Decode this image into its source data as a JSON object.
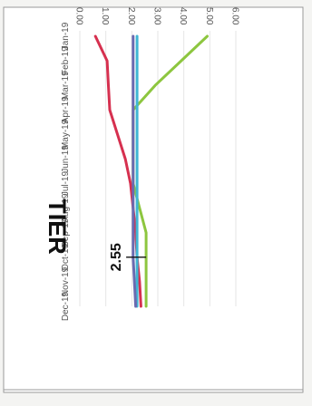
{
  "chart_data": {
    "type": "line",
    "title": "TIER",
    "categories": [
      "Jan-19",
      "Feb-19",
      "Mar-19",
      "Apr-19",
      "May-19",
      "Jun-19",
      "Jul-19",
      "Aug-19",
      "Sep-19",
      "Oct-19",
      "Nov-19",
      "Dec-19"
    ],
    "ylim": [
      0,
      6
    ],
    "yticks": [
      "0.00",
      "1.00",
      "2.00",
      "3.00",
      "4.00",
      "5.00",
      "6.00"
    ],
    "grid": true,
    "series": [
      {
        "color": "#8dc63f",
        "values": [
          4.9,
          3.9,
          2.9,
          2.05,
          2.05,
          2.05,
          2.05,
          2.3,
          2.55,
          2.55,
          2.55,
          2.55
        ]
      },
      {
        "color": "#d6304f",
        "values": [
          0.6,
          1.05,
          1.1,
          1.15,
          1.45,
          1.75,
          1.95,
          2.05,
          2.15,
          2.2,
          2.3,
          2.35
        ]
      },
      {
        "color": "#3fb6d4",
        "values": [
          2.2,
          2.2,
          2.2,
          2.2,
          2.2,
          2.2,
          2.2,
          2.2,
          2.2,
          2.2,
          2.2,
          2.2
        ]
      },
      {
        "color": "#6a6ab0",
        "values": [
          2.05,
          2.05,
          2.05,
          2.05,
          2.05,
          2.05,
          2.05,
          2.05,
          2.05,
          2.05,
          2.1,
          2.15
        ]
      }
    ],
    "annotations": [
      {
        "text": "2.55",
        "category": "Oct-19",
        "value": 2.55
      }
    ]
  }
}
